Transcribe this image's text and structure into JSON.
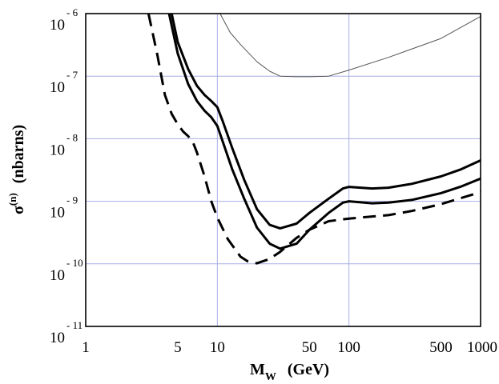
{
  "chart_data": {
    "type": "line",
    "xscale": "log",
    "yscale": "log",
    "xlim": [
      1,
      1000
    ],
    "ylim": [
      1e-11,
      1e-06
    ],
    "grid": true,
    "title": "",
    "xlabel": {
      "main": "M",
      "sub": "W",
      "unit": "(GeV)"
    },
    "ylabel": {
      "main": "σ",
      "sup": "(n)",
      "unit": "(nbarns)"
    },
    "x_ticks": [
      {
        "value": 1,
        "label": "1"
      },
      {
        "value": 5,
        "label": "5"
      },
      {
        "value": 10,
        "label": "10"
      },
      {
        "value": 50,
        "label": "50"
      },
      {
        "value": 100,
        "label": "100"
      },
      {
        "value": 500,
        "label": "500"
      },
      {
        "value": 1000,
        "label": "1000"
      }
    ],
    "y_ticks": [
      {
        "value": 1e-06,
        "base": "10",
        "exp": "- 6"
      },
      {
        "value": 1e-07,
        "base": "10",
        "exp": "- 7"
      },
      {
        "value": 1e-08,
        "base": "10",
        "exp": "- 8"
      },
      {
        "value": 1e-09,
        "base": "10",
        "exp": "- 9"
      },
      {
        "value": 1e-10,
        "base": "10",
        "exp": "- 10"
      },
      {
        "value": 1e-11,
        "base": "10",
        "exp": "- 11"
      }
    ],
    "x_gridlines": [
      10,
      100
    ],
    "y_gridlines": [
      1e-07,
      1e-08,
      1e-09,
      1e-10
    ],
    "series": [
      {
        "name": "thin upper curve",
        "style": "thin",
        "x": [
          10.5,
          12.5,
          15,
          20,
          25,
          30,
          40,
          50,
          70,
          100,
          200,
          500,
          1000
        ],
        "y": [
          1e-06,
          5e-07,
          3.2e-07,
          1.7e-07,
          1.2e-07,
          1e-07,
          9.8e-08,
          9.8e-08,
          1e-07,
          1.25e-07,
          2e-07,
          4e-07,
          9e-07
        ]
      },
      {
        "name": "upper solid curve",
        "style": "thick",
        "x": [
          4.5,
          5,
          6,
          7,
          8,
          9,
          10,
          11,
          13,
          16,
          20,
          25,
          30,
          40,
          50,
          70,
          90,
          100,
          150,
          200,
          300,
          500,
          700,
          1000
        ],
        "y": [
          1e-06,
          3.5e-07,
          1.3e-07,
          7e-08,
          5e-08,
          4e-08,
          3.2e-08,
          1.9e-08,
          7e-09,
          2.2e-09,
          7.5e-10,
          4.2e-10,
          3.7e-10,
          4.4e-10,
          6.5e-10,
          1.1e-09,
          1.6e-09,
          1.7e-09,
          1.6e-09,
          1.65e-09,
          1.9e-09,
          2.5e-09,
          3.2e-09,
          4.5e-09
        ]
      },
      {
        "name": "lower solid curve",
        "style": "thick",
        "x": [
          4.3,
          5,
          6,
          7,
          8,
          9,
          10,
          11,
          13,
          16,
          20,
          25,
          30,
          40,
          50,
          70,
          90,
          100,
          150,
          200,
          300,
          500,
          700,
          1000
        ],
        "y": [
          1e-06,
          2.3e-07,
          7.5e-08,
          4e-08,
          2.8e-08,
          2.2e-08,
          1.6e-08,
          9e-09,
          3.2e-09,
          1.1e-09,
          3.8e-10,
          2.1e-10,
          1.75e-10,
          2.1e-10,
          3.5e-10,
          6.5e-10,
          9.5e-10,
          1e-09,
          9.3e-10,
          9.5e-10,
          1.05e-09,
          1.35e-09,
          1.7e-09,
          2.3e-09
        ]
      },
      {
        "name": "dashed curve",
        "style": "dashed",
        "x": [
          3,
          3.5,
          4,
          4.5,
          5,
          5.5,
          6,
          6.5,
          7,
          8,
          9,
          10,
          12,
          15,
          17,
          20,
          25,
          30,
          40,
          50,
          70,
          100,
          200,
          300,
          500,
          1000
        ],
        "y": [
          1e-06,
          2.2e-07,
          5e-08,
          2.5e-08,
          1.7e-08,
          1.3e-08,
          1.1e-08,
          9e-09,
          6e-09,
          2.5e-09,
          1e-09,
          5.5e-10,
          2.5e-10,
          1.3e-10,
          1.1e-10,
          1.02e-10,
          1.2e-10,
          1.55e-10,
          2.6e-10,
          3.5e-10,
          4.8e-10,
          5.3e-10,
          6e-10,
          7e-10,
          9e-10,
          1.4e-09
        ]
      }
    ]
  }
}
